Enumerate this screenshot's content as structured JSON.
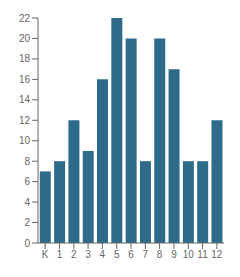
{
  "chart_data": {
    "type": "bar",
    "categories": [
      "K",
      "1",
      "2",
      "3",
      "4",
      "5",
      "6",
      "7",
      "8",
      "9",
      "10",
      "11",
      "12"
    ],
    "values": [
      7,
      8,
      12,
      9,
      16,
      22,
      20,
      8,
      20,
      17,
      8,
      8,
      12
    ],
    "color": "#2e6b8a",
    "ylim": [
      0,
      22
    ],
    "yticks": [
      0,
      2,
      4,
      6,
      8,
      10,
      12,
      14,
      16,
      18,
      20,
      22
    ],
    "grid": false
  }
}
